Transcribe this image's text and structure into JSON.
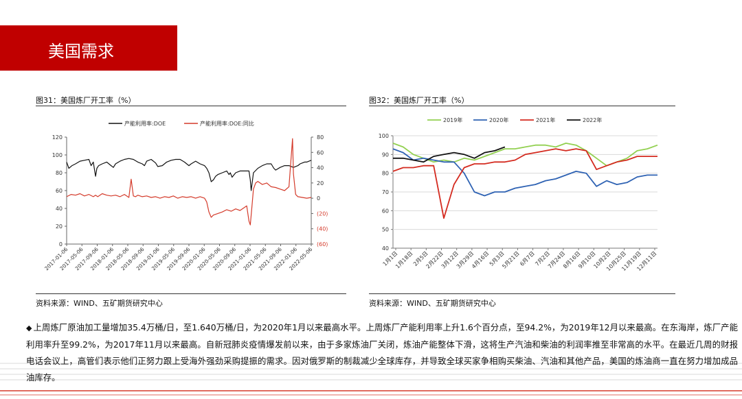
{
  "header": {
    "title": "美国需求"
  },
  "figures": [
    {
      "title": "图31：美国炼厂开工率（%）",
      "source": "资料来源：WIND、五矿期货研究中心"
    },
    {
      "title": "图32：美国炼厂开工率（%）",
      "source": "资料来源：WIND、五矿期货研究中心"
    }
  ],
  "paragraph": {
    "bullet": "◆",
    "text": "上周炼厂原油加工量增加35.4万桶/日，至1.640万桶/日，为2020年1月以来最高水平。上周炼厂产能利用率上升1.6个百分点，至94.2%，为2019年12月以来最高。在东海岸，炼厂产能利用率升至99.2%，为2017年11月以来最高。自新冠肺炎疫情爆发前以来，由于多家炼油厂关闭，炼油产能整体下滑，这将生产汽油和柴油的利润率推至非常高的水平。在最近几周的财报电话会议上，高管们表示他们正努力跟上受海外强劲采购提振的需求。因对俄罗斯的制裁减少全球库存，并导致全球买家争相购买柴油、汽油和其他产品，美国的炼油商一直在努力增加成品油库存。"
  },
  "chart_data": [
    {
      "type": "line",
      "title": "图31：美国炼厂开工率（%）",
      "x_ticks": [
        "2017-01-06",
        "2017-05-06",
        "2017-09-06",
        "2018-01-06",
        "2018-05-06",
        "2018-09-06",
        "2019-01-06",
        "2019-05-06",
        "2019-09-06",
        "2020-01-06",
        "2020-05-06",
        "2020-09-06",
        "2021-01-06",
        "2021-05-06",
        "2021-09-06",
        "2022-01-06",
        "2022-05-06"
      ],
      "x_range": [
        2017.0,
        2022.5
      ],
      "ylim_left": [
        0,
        120
      ],
      "y_ticks_left": [
        "0",
        "20",
        "40",
        "60",
        "80",
        "100",
        "120"
      ],
      "ylim_right": [
        -60,
        80
      ],
      "y_ticks_right": [
        "(60)",
        "(40)",
        "(20)",
        "0",
        "20",
        "40",
        "60",
        "80"
      ],
      "right_tick_color": "#d43a2a",
      "legend": "top",
      "series": [
        {
          "name": "产能利用率:DOE",
          "axis": "left",
          "color": "#111111",
          "x": [
            2017.0,
            2017.05,
            2017.12,
            2017.2,
            2017.3,
            2017.4,
            2017.5,
            2017.55,
            2017.6,
            2017.65,
            2017.68,
            2017.72,
            2017.8,
            2017.9,
            2018.0,
            2018.05,
            2018.1,
            2018.2,
            2018.3,
            2018.4,
            2018.5,
            2018.6,
            2018.7,
            2018.75,
            2018.8,
            2018.9,
            2019.0,
            2019.05,
            2019.15,
            2019.25,
            2019.35,
            2019.45,
            2019.55,
            2019.65,
            2019.75,
            2019.8,
            2019.9,
            2020.0,
            2020.1,
            2020.15,
            2020.2,
            2020.25,
            2020.3,
            2020.35,
            2020.4,
            2020.5,
            2020.6,
            2020.65,
            2020.68,
            2020.72,
            2020.8,
            2020.9,
            2021.0,
            2021.05,
            2021.1,
            2021.13,
            2021.15,
            2021.2,
            2021.3,
            2021.4,
            2021.5,
            2021.6,
            2021.66,
            2021.7,
            2021.8,
            2021.9,
            2022.0,
            2022.1,
            2022.2,
            2022.25,
            2022.3,
            2022.35,
            2022.4,
            2022.45,
            2022.5
          ],
          "y": [
            92,
            85,
            88,
            90,
            93,
            94,
            95,
            88,
            92,
            76,
            85,
            88,
            90,
            92,
            88,
            86,
            90,
            93,
            95,
            96,
            95,
            92,
            90,
            88,
            93,
            95,
            91,
            87,
            88,
            92,
            94,
            95,
            95,
            92,
            88,
            90,
            93,
            90,
            88,
            85,
            80,
            70,
            72,
            76,
            78,
            80,
            82,
            78,
            80,
            75,
            80,
            82,
            82,
            82,
            82,
            72,
            60,
            80,
            85,
            88,
            90,
            90,
            85,
            83,
            86,
            88,
            88,
            86,
            88,
            90,
            91,
            92,
            92,
            93,
            94
          ]
        },
        {
          "name": "产能利用率:DOE:同比",
          "axis": "right",
          "color": "#d43a2a",
          "x": [
            2017.0,
            2017.1,
            2017.2,
            2017.3,
            2017.4,
            2017.5,
            2017.6,
            2017.65,
            2017.7,
            2017.8,
            2017.9,
            2018.0,
            2018.1,
            2018.2,
            2018.3,
            2018.4,
            2018.45,
            2018.5,
            2018.55,
            2018.6,
            2018.7,
            2018.8,
            2018.9,
            2019.0,
            2019.1,
            2019.2,
            2019.3,
            2019.4,
            2019.5,
            2019.6,
            2019.7,
            2019.8,
            2019.9,
            2020.0,
            2020.1,
            2020.15,
            2020.2,
            2020.25,
            2020.3,
            2020.4,
            2020.5,
            2020.6,
            2020.7,
            2020.8,
            2020.9,
            2021.0,
            2021.05,
            2021.1,
            2021.13,
            2021.16,
            2021.2,
            2021.25,
            2021.3,
            2021.4,
            2021.5,
            2021.6,
            2021.7,
            2021.8,
            2021.9,
            2022.0,
            2022.05,
            2022.08,
            2022.1,
            2022.15,
            2022.2,
            2022.3,
            2022.4,
            2022.5
          ],
          "y": [
            2,
            5,
            4,
            6,
            3,
            5,
            2,
            4,
            2,
            6,
            4,
            3,
            4,
            2,
            5,
            1,
            25,
            3,
            2,
            4,
            2,
            3,
            1,
            2,
            0,
            2,
            1,
            3,
            0,
            2,
            1,
            2,
            0,
            2,
            0,
            -5,
            -18,
            -25,
            -22,
            -20,
            -18,
            -15,
            -17,
            -14,
            -16,
            -12,
            -10,
            -30,
            -35,
            -15,
            12,
            20,
            22,
            18,
            20,
            15,
            14,
            12,
            10,
            15,
            55,
            78,
            32,
            5,
            2,
            1,
            0,
            1
          ]
        }
      ]
    },
    {
      "type": "line",
      "title": "图32：美国炼厂开工率（%）",
      "categories": [
        "1月1日",
        "1月18日",
        "2月5日",
        "2月22日",
        "3月12日",
        "3月29日",
        "4月16日",
        "5月3日",
        "5月21日",
        "6月7日",
        "7月2日",
        "7月24日",
        "8月16日",
        "9月10日",
        "10月2日",
        "10月25日",
        "11月19日",
        "12月11日"
      ],
      "ylim": [
        40,
        100
      ],
      "y_ticks": [
        "40",
        "50",
        "60",
        "70",
        "80",
        "90",
        "100"
      ],
      "x_range_weeks": [
        0,
        52
      ],
      "legend": "top",
      "series": [
        {
          "name": "2019年",
          "color": "#92d050",
          "x": [
            0,
            2,
            4,
            6,
            8,
            10,
            12,
            14,
            16,
            18,
            20,
            22,
            24,
            26,
            28,
            30,
            32,
            34,
            36,
            38,
            40,
            42,
            44,
            46,
            48,
            50,
            52
          ],
          "y": [
            96,
            94,
            90,
            88,
            86,
            87,
            86,
            88,
            87,
            89,
            91,
            93,
            93,
            94,
            95,
            95,
            94,
            96,
            95,
            92,
            88,
            84,
            86,
            88,
            92,
            93,
            95
          ]
        },
        {
          "name": "2020年",
          "color": "#2e62b3",
          "x": [
            0,
            2,
            4,
            6,
            8,
            10,
            12,
            14,
            16,
            18,
            20,
            22,
            24,
            26,
            28,
            30,
            32,
            34,
            36,
            38,
            40,
            42,
            44,
            46,
            48,
            50,
            52
          ],
          "y": [
            93,
            91,
            87,
            88,
            87,
            86,
            86,
            80,
            70,
            68,
            70,
            70,
            72,
            73,
            74,
            76,
            77,
            79,
            81,
            80,
            73,
            76,
            74,
            75,
            78,
            79,
            79
          ]
        },
        {
          "name": "2021年",
          "color": "#d42a1f",
          "x": [
            0,
            2,
            4,
            6,
            8,
            10,
            12,
            14,
            16,
            18,
            20,
            22,
            24,
            26,
            28,
            30,
            32,
            34,
            36,
            38,
            40,
            42,
            44,
            46,
            48,
            50,
            52
          ],
          "y": [
            81,
            83,
            83,
            84,
            84,
            56,
            74,
            83,
            85,
            85,
            86,
            86,
            87,
            90,
            91,
            92,
            93,
            92,
            93,
            92,
            82,
            84,
            86,
            87,
            89,
            89,
            89
          ]
        },
        {
          "name": "2022年",
          "color": "#111111",
          "x": [
            0,
            2,
            4,
            6,
            8,
            10,
            12,
            14,
            16,
            18,
            20,
            22
          ],
          "y": [
            88,
            88,
            87,
            86,
            89,
            90,
            91,
            90,
            88,
            91,
            92,
            94
          ]
        }
      ]
    }
  ]
}
